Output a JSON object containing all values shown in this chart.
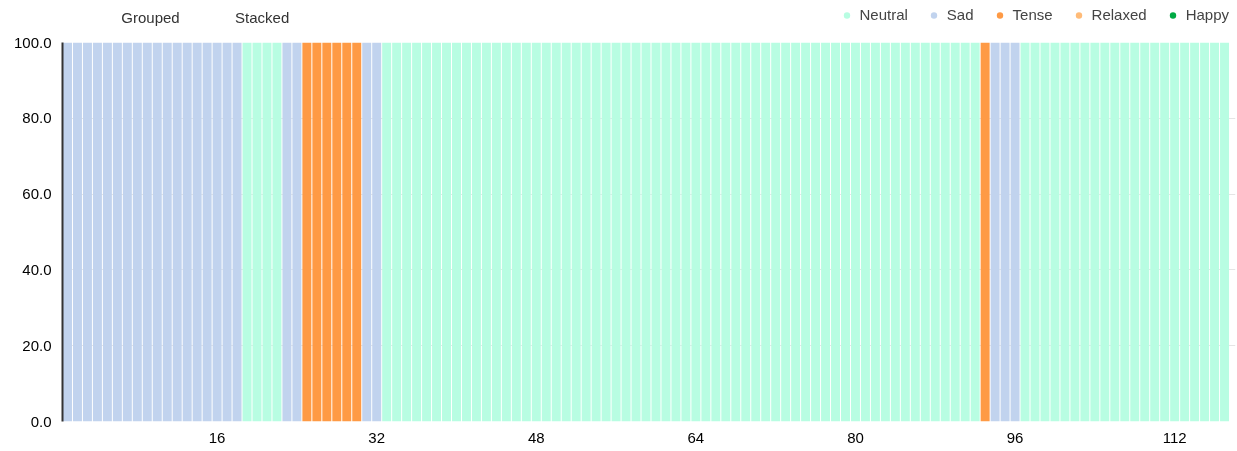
{
  "chart_data": {
    "type": "bar",
    "stacked": true,
    "x": [
      1,
      2,
      3,
      4,
      5,
      6,
      7,
      8,
      9,
      10,
      11,
      12,
      13,
      14,
      15,
      16,
      17,
      18,
      19,
      20,
      21,
      22,
      23,
      24,
      25,
      26,
      27,
      28,
      29,
      30,
      31,
      32,
      33,
      34,
      35,
      36,
      37,
      38,
      39,
      40,
      41,
      42,
      43,
      44,
      45,
      46,
      47,
      48,
      49,
      50,
      51,
      52,
      53,
      54,
      55,
      56,
      57,
      58,
      59,
      60,
      61,
      62,
      63,
      64,
      65,
      66,
      67,
      68,
      69,
      70,
      71,
      72,
      73,
      74,
      75,
      76,
      77,
      78,
      79,
      80,
      81,
      82,
      83,
      84,
      85,
      86,
      87,
      88,
      89,
      90,
      91,
      92,
      93,
      94,
      95,
      96,
      97,
      98,
      99,
      100,
      101,
      102,
      103,
      104,
      105,
      106,
      107,
      108,
      109,
      110,
      111,
      112,
      113,
      114,
      115,
      116,
      117
    ],
    "series": [
      {
        "name": "Neutral",
        "color": "#b8fde2",
        "values": [
          0,
          0,
          0,
          0,
          0,
          0,
          0,
          0,
          0,
          0,
          0,
          0,
          0,
          0,
          0,
          0,
          0,
          0,
          100,
          100,
          100,
          100,
          0,
          0,
          0,
          0,
          0,
          0,
          0,
          0,
          0,
          0,
          100,
          100,
          100,
          100,
          100,
          100,
          100,
          100,
          100,
          100,
          100,
          100,
          100,
          100,
          100,
          100,
          100,
          100,
          100,
          100,
          100,
          100,
          100,
          100,
          100,
          100,
          100,
          100,
          100,
          100,
          100,
          100,
          100,
          100,
          100,
          100,
          100,
          100,
          100,
          100,
          100,
          100,
          100,
          100,
          100,
          100,
          100,
          100,
          100,
          100,
          100,
          100,
          100,
          100,
          100,
          100,
          100,
          100,
          100,
          100,
          0,
          0,
          0,
          0,
          100,
          100,
          100,
          100,
          100,
          100,
          100,
          100,
          100,
          100,
          100,
          100,
          100,
          100,
          100,
          100,
          100,
          100,
          100,
          100,
          100
        ]
      },
      {
        "name": "Sad",
        "color": "#c1d3ee",
        "values": [
          100,
          100,
          100,
          100,
          100,
          100,
          100,
          100,
          100,
          100,
          100,
          100,
          100,
          100,
          100,
          100,
          100,
          100,
          0,
          0,
          0,
          0,
          100,
          100,
          0,
          0,
          0,
          0,
          0,
          0,
          100,
          100,
          0,
          0,
          0,
          0,
          0,
          0,
          0,
          0,
          0,
          0,
          0,
          0,
          0,
          0,
          0,
          0,
          0,
          0,
          0,
          0,
          0,
          0,
          0,
          0,
          0,
          0,
          0,
          0,
          0,
          0,
          0,
          0,
          0,
          0,
          0,
          0,
          0,
          0,
          0,
          0,
          0,
          0,
          0,
          0,
          0,
          0,
          0,
          0,
          0,
          0,
          0,
          0,
          0,
          0,
          0,
          0,
          0,
          0,
          0,
          0,
          0,
          100,
          100,
          100,
          0,
          0,
          0,
          0,
          0,
          0,
          0,
          0,
          0,
          0,
          0,
          0,
          0,
          0,
          0,
          0,
          0,
          0,
          0,
          0,
          0
        ]
      },
      {
        "name": "Tense",
        "color": "#fe9a45",
        "values": [
          0,
          0,
          0,
          0,
          0,
          0,
          0,
          0,
          0,
          0,
          0,
          0,
          0,
          0,
          0,
          0,
          0,
          0,
          0,
          0,
          0,
          0,
          0,
          0,
          100,
          100,
          100,
          100,
          100,
          100,
          0,
          0,
          0,
          0,
          0,
          0,
          0,
          0,
          0,
          0,
          0,
          0,
          0,
          0,
          0,
          0,
          0,
          0,
          0,
          0,
          0,
          0,
          0,
          0,
          0,
          0,
          0,
          0,
          0,
          0,
          0,
          0,
          0,
          0,
          0,
          0,
          0,
          0,
          0,
          0,
          0,
          0,
          0,
          0,
          0,
          0,
          0,
          0,
          0,
          0,
          0,
          0,
          0,
          0,
          0,
          0,
          0,
          0,
          0,
          0,
          0,
          0,
          100,
          0,
          0,
          0,
          0,
          0,
          0,
          0,
          0,
          0,
          0,
          0,
          0,
          0,
          0,
          0,
          0,
          0,
          0,
          0,
          0,
          0,
          0,
          0,
          0
        ]
      },
      {
        "name": "Relaxed",
        "color": "#ffbb78",
        "values": [
          0,
          0,
          0,
          0,
          0,
          0,
          0,
          0,
          0,
          0,
          0,
          0,
          0,
          0,
          0,
          0,
          0,
          0,
          0,
          0,
          0,
          0,
          0,
          0,
          0,
          0,
          0,
          0,
          0,
          0,
          0,
          0,
          0,
          0,
          0,
          0,
          0,
          0,
          0,
          0,
          0,
          0,
          0,
          0,
          0,
          0,
          0,
          0,
          0,
          0,
          0,
          0,
          0,
          0,
          0,
          0,
          0,
          0,
          0,
          0,
          0,
          0,
          0,
          0,
          0,
          0,
          0,
          0,
          0,
          0,
          0,
          0,
          0,
          0,
          0,
          0,
          0,
          0,
          0,
          0,
          0,
          0,
          0,
          0,
          0,
          0,
          0,
          0,
          0,
          0,
          0,
          0,
          0,
          0,
          0,
          0,
          0,
          0,
          0,
          0,
          0,
          0,
          0,
          0,
          0,
          0,
          0,
          0,
          0,
          0,
          0,
          0,
          0,
          0,
          0,
          0,
          0
        ]
      },
      {
        "name": "Happy",
        "color": "#00aa44",
        "values": [
          0,
          0,
          0,
          0,
          0,
          0,
          0,
          0,
          0,
          0,
          0,
          0,
          0,
          0,
          0,
          0,
          0,
          0,
          0,
          0,
          0,
          0,
          0,
          0,
          0,
          0,
          0,
          0,
          0,
          0,
          0,
          0,
          0,
          0,
          0,
          0,
          0,
          0,
          0,
          0,
          0,
          0,
          0,
          0,
          0,
          0,
          0,
          0,
          0,
          0,
          0,
          0,
          0,
          0,
          0,
          0,
          0,
          0,
          0,
          0,
          0,
          0,
          0,
          0,
          0,
          0,
          0,
          0,
          0,
          0,
          0,
          0,
          0,
          0,
          0,
          0,
          0,
          0,
          0,
          0,
          0,
          0,
          0,
          0,
          0,
          0,
          0,
          0,
          0,
          0,
          0,
          0,
          0,
          0,
          0,
          0,
          0,
          0,
          0,
          0,
          0,
          0,
          0,
          0,
          0,
          0,
          0,
          0,
          0,
          0,
          0,
          0,
          0,
          0,
          0,
          0,
          0
        ]
      }
    ],
    "xlim": [
      0.5,
      118.1
    ],
    "xticks": [
      16,
      32,
      48,
      64,
      80,
      96,
      112
    ],
    "ylim": [
      0,
      100
    ],
    "yticks": [
      {
        "value": 0,
        "label": "0.0"
      },
      {
        "value": 20,
        "label": "20.0"
      },
      {
        "value": 40,
        "label": "40.0"
      },
      {
        "value": 60,
        "label": "60.0"
      },
      {
        "value": 80,
        "label": "80.0"
      },
      {
        "value": 100,
        "label": "100.0"
      }
    ],
    "grid": "y",
    "legend": "top right",
    "annotations": [
      "Grouped",
      "Stacked"
    ]
  }
}
